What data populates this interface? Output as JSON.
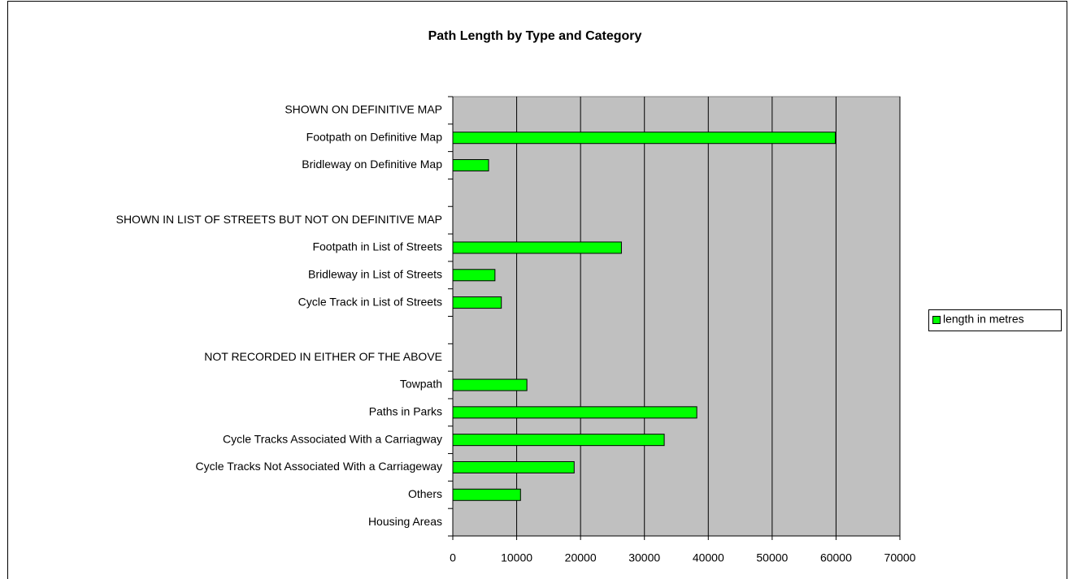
{
  "chart_data": {
    "type": "bar",
    "orientation": "horizontal",
    "title": "Path Length by Type and Category",
    "categories": [
      "SHOWN ON DEFINITIVE MAP",
      "Footpath on Definitive Map",
      "Bridleway on Definitive Map",
      null,
      "SHOWN IN LIST OF STREETS BUT NOT ON DEFINITIVE MAP",
      "Footpath in List of Streets",
      "Bridleway in List of Streets",
      "Cycle Track in List of Streets",
      null,
      "NOT RECORDED IN EITHER OF THE ABOVE",
      "Towpath",
      "Paths in Parks",
      "Cycle Tracks Associated With a Carriagway",
      "Cycle Tracks Not Associated With a Carriageway",
      "Others",
      "Housing Areas"
    ],
    "series": [
      {
        "name": "length in metres",
        "color": "#00ff00",
        "values": [
          null,
          59900,
          5600,
          null,
          null,
          26400,
          6600,
          7600,
          null,
          null,
          11600,
          38200,
          33100,
          19000,
          10600,
          null
        ]
      }
    ],
    "xlim": [
      0,
      70000
    ],
    "xticks": [
      0,
      10000,
      20000,
      30000,
      40000,
      50000,
      60000,
      70000
    ],
    "grid": true,
    "legend": "right",
    "plot_background": "#c0c0c0"
  }
}
